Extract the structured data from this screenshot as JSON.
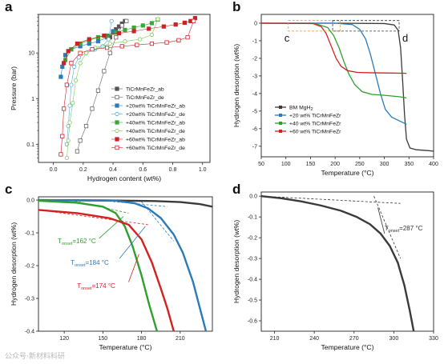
{
  "watermark": "公众号·新材料科研",
  "chart_data": [
    {
      "panel": "a",
      "type": "scatter",
      "xlabel": "Hydrogen content (wt%)",
      "ylabel": "Pressure (bar)",
      "xlim": [
        -0.1,
        1.05
      ],
      "ylim": [
        0.04,
        70
      ],
      "yscale": "log",
      "xticks": [
        0.0,
        0.2,
        0.4,
        0.6,
        0.8,
        1.0
      ],
      "yticks": [
        {
          "v": 0.1,
          "label": "0.1"
        },
        {
          "v": 1,
          "label": "1"
        },
        {
          "v": 10,
          "label": "10"
        }
      ],
      "legend_position": "bottom-right",
      "series": [
        {
          "name": "TiCrMnFeZr_ab",
          "color": "#555555",
          "marker": "square-filled",
          "x": [
            0.48,
            0.46,
            0.44,
            0.42,
            0.4,
            0.38
          ],
          "y": [
            50,
            44,
            38,
            33,
            28,
            22
          ]
        },
        {
          "name": "TiCrMnFeZr_de",
          "color": "#666666",
          "marker": "square-open",
          "x": [
            0.49,
            0.46,
            0.42,
            0.38,
            0.34,
            0.3,
            0.26,
            0.22,
            0.18,
            0.16
          ],
          "y": [
            50,
            40,
            22,
            10,
            4,
            1.5,
            0.6,
            0.25,
            0.12,
            0.07
          ]
        },
        {
          "name": "+20wt% TiCrMnFeZr_ab",
          "color": "#2a7bb8",
          "marker": "square-filled",
          "x": [
            0.4,
            0.36,
            0.3,
            0.24,
            0.18,
            0.12,
            0.08,
            0.06,
            0.05
          ],
          "y": [
            30,
            22,
            18,
            16,
            14,
            12,
            9,
            5,
            3
          ]
        },
        {
          "name": "+20wt% TiCrMnFeZr_de",
          "color": "#5aa8dc",
          "marker": "circle-open",
          "x": [
            0.39,
            0.37,
            0.33,
            0.28,
            0.22,
            0.17,
            0.14,
            0.12,
            0.11,
            0.1,
            0.09
          ],
          "y": [
            50,
            20,
            14,
            12,
            10,
            8,
            5,
            2,
            0.7,
            0.25,
            0.1
          ]
        },
        {
          "name": "+40wt% TiCrMnFeZr_ab",
          "color": "#38a838",
          "marker": "square-filled",
          "x": [
            0.7,
            0.66,
            0.6,
            0.54,
            0.48,
            0.42,
            0.36,
            0.3,
            0.24,
            0.18,
            0.12,
            0.08
          ],
          "y": [
            54,
            45,
            40,
            36,
            32,
            28,
            24,
            22,
            19,
            16,
            12,
            7
          ]
        },
        {
          "name": "+40wt% TiCrMnFeZr_de",
          "color": "#7ccc5a",
          "marker": "circle-open",
          "x": [
            0.7,
            0.66,
            0.58,
            0.48,
            0.38,
            0.28,
            0.22,
            0.18,
            0.15,
            0.13,
            0.11,
            0.1,
            0.09
          ],
          "y": [
            55,
            25,
            20,
            18,
            16,
            13,
            10,
            6,
            2.5,
            0.8,
            0.3,
            0.12,
            0.05
          ]
        },
        {
          "name": "+60wt% TiCrMnFeZr_ab",
          "color": "#cc2222",
          "marker": "square-filled",
          "x": [
            0.95,
            0.92,
            0.88,
            0.82,
            0.74,
            0.64,
            0.54,
            0.44,
            0.34,
            0.24,
            0.16,
            0.1,
            0.07
          ],
          "y": [
            58,
            50,
            46,
            42,
            38,
            34,
            30,
            27,
            24,
            20,
            16,
            11,
            6
          ]
        },
        {
          "name": "+60wt% TiCrMnFeZr_de",
          "color": "#cc2222",
          "marker": "square-open",
          "x": [
            0.94,
            0.9,
            0.84,
            0.76,
            0.66,
            0.56,
            0.46,
            0.36,
            0.26,
            0.18,
            0.12,
            0.09,
            0.07,
            0.06,
            0.05
          ],
          "y": [
            50,
            22,
            19,
            17,
            16,
            15,
            14,
            13,
            12,
            10,
            6,
            2,
            0.6,
            0.15,
            0.06
          ]
        }
      ]
    },
    {
      "panel": "b",
      "type": "line",
      "xlabel": "Temperature (°C)",
      "ylabel": "Hydrogen desorption (wt%)",
      "xlim": [
        50,
        400
      ],
      "ylim": [
        -7.6,
        0.5
      ],
      "xticks": [
        50,
        100,
        150,
        200,
        250,
        300,
        350,
        400
      ],
      "yticks": [
        0,
        -1,
        -2,
        -3,
        -4,
        -5,
        -6,
        -7
      ],
      "legend_position": "bottom-left",
      "series": [
        {
          "name": "BM MgH2",
          "color": "#3a3a3a",
          "x": [
            50,
            200,
            300,
            320,
            328,
            333,
            337,
            341,
            345,
            352,
            365,
            390,
            400
          ],
          "y": [
            0,
            0,
            -0.02,
            -0.1,
            -0.4,
            -1.4,
            -3.2,
            -5.2,
            -6.6,
            -7.1,
            -7.2,
            -7.25,
            -7.28
          ]
        },
        {
          "name": "+20 wt% TiCrMnFeZr",
          "color": "#2a7bb8",
          "x": [
            50,
            200,
            235,
            250,
            262,
            272,
            282,
            292,
            302,
            315,
            330,
            345
          ],
          "y": [
            0,
            0,
            -0.08,
            -0.35,
            -0.9,
            -1.8,
            -2.9,
            -4.0,
            -4.9,
            -5.35,
            -5.55,
            -5.75
          ]
        },
        {
          "name": "+40 wt% TiCrMnFeZr",
          "color": "#2ea02e",
          "x": [
            50,
            160,
            185,
            197,
            208,
            218,
            228,
            240,
            255,
            275,
            300,
            330,
            345
          ],
          "y": [
            0,
            -0.02,
            -0.25,
            -0.7,
            -1.4,
            -2.2,
            -2.9,
            -3.5,
            -3.9,
            -4.05,
            -4.1,
            -4.18,
            -4.25
          ]
        },
        {
          "name": "+60 wt% TiCrMnFeZr",
          "color": "#d42020",
          "x": [
            50,
            155,
            172,
            182,
            192,
            202,
            212,
            225,
            245,
            270,
            300,
            345
          ],
          "y": [
            0,
            -0.02,
            -0.2,
            -0.6,
            -1.3,
            -2.0,
            -2.45,
            -2.7,
            -2.8,
            -2.82,
            -2.83,
            -2.85
          ]
        }
      ],
      "annotations": [
        {
          "label": "c",
          "color": "#e0922a",
          "box_x": [
            105,
            210
          ],
          "box_y": [
            -0.45,
            0.15
          ]
        },
        {
          "label": "d",
          "color": "#333333",
          "box_x": [
            195,
            330
          ],
          "box_y": [
            -0.45,
            0.15
          ]
        }
      ]
    },
    {
      "panel": "c",
      "type": "line",
      "xlabel": "Temperature (°C)",
      "ylabel": "Hydrogen desorption (wt%)",
      "xlim": [
        100,
        235
      ],
      "ylim": [
        -0.4,
        0.01
      ],
      "xticks": [
        120,
        150,
        180,
        210
      ],
      "yticks": [
        0.0,
        -0.1,
        -0.2,
        -0.3,
        -0.4
      ],
      "series": [
        {
          "name": "BM MgH2",
          "color": "#3a3a3a",
          "x": [
            100,
            150,
            190,
            210,
            225,
            235
          ],
          "y": [
            0,
            -0.001,
            -0.003,
            -0.006,
            -0.012,
            -0.02
          ]
        },
        {
          "name": "+20 wt% TiCrMnFeZr",
          "color": "#2a7bb8",
          "x": [
            100,
            160,
            175,
            185,
            195,
            205,
            212,
            220,
            226,
            230
          ],
          "y": [
            0,
            -0.002,
            -0.01,
            -0.025,
            -0.055,
            -0.105,
            -0.16,
            -0.25,
            -0.34,
            -0.4
          ]
        },
        {
          "name": "+40 wt% TiCrMnFeZr",
          "color": "#2ea02e",
          "x": [
            100,
            130,
            150,
            160,
            167,
            173,
            180,
            186,
            192
          ],
          "y": [
            -0.002,
            -0.008,
            -0.02,
            -0.04,
            -0.08,
            -0.14,
            -0.23,
            -0.32,
            -0.4
          ]
        },
        {
          "name": "+60 wt% TiCrMnFeZr",
          "color": "#d42020",
          "x": [
            100,
            130,
            155,
            170,
            180,
            188,
            195,
            200,
            205
          ],
          "y": [
            -0.03,
            -0.04,
            -0.055,
            -0.075,
            -0.12,
            -0.19,
            -0.27,
            -0.33,
            -0.4
          ]
        }
      ],
      "tangents": [
        {
          "color": "#2ea02e",
          "x": [
            125,
            170
          ],
          "y": [
            -0.0,
            -0.04
          ]
        },
        {
          "color": "#2a7bb8",
          "x": [
            145,
            200
          ],
          "y": [
            0.0,
            -0.02
          ]
        },
        {
          "color": "#2a7bb8",
          "x": [
            180,
            205
          ],
          "y": [
            -0.005,
            -0.125
          ]
        },
        {
          "color": "#d42020",
          "x": [
            100,
            185
          ],
          "y": [
            -0.03,
            -0.075
          ]
        }
      ],
      "annotations": [
        {
          "text_main": "T",
          "text_sub": "onset",
          "text_value": "=162 °C",
          "color": "#2ea02e"
        },
        {
          "text_main": "T",
          "text_sub": "onset",
          "text_value": "=184 °C",
          "color": "#2a7bb8"
        },
        {
          "text_main": "T",
          "text_sub": "onset",
          "text_value": "=174 °C",
          "color": "#d42020"
        }
      ]
    },
    {
      "panel": "d",
      "type": "line",
      "xlabel": "Temperature (°C)",
      "ylabel": "Hydrogen desorption (wt%)",
      "xlim": [
        200,
        330
      ],
      "ylim": [
        -0.65,
        0.02
      ],
      "xticks": [
        210,
        240,
        270,
        300,
        330
      ],
      "yticks": [
        0.0,
        -0.1,
        -0.2,
        -0.3,
        -0.4,
        -0.5,
        -0.6
      ],
      "series": [
        {
          "name": "BM MgH2",
          "color": "#3a3a3a",
          "x": [
            200,
            215,
            230,
            245,
            260,
            272,
            282,
            290,
            297,
            303,
            308,
            312,
            315
          ],
          "y": [
            0,
            -0.01,
            -0.025,
            -0.045,
            -0.07,
            -0.1,
            -0.135,
            -0.18,
            -0.24,
            -0.32,
            -0.43,
            -0.55,
            -0.65
          ]
        }
      ],
      "tangents": [
        {
          "color": "#333333",
          "x": [
            200,
            305
          ],
          "y": [
            0.0,
            -0.035
          ]
        },
        {
          "color": "#333333",
          "x": [
            285,
            305
          ],
          "y": [
            0.0,
            -0.3
          ]
        }
      ],
      "annotations": [
        {
          "text_main": "T",
          "text_sub": "onset",
          "text_value": "=287 °C",
          "color": "#333333"
        }
      ]
    }
  ]
}
